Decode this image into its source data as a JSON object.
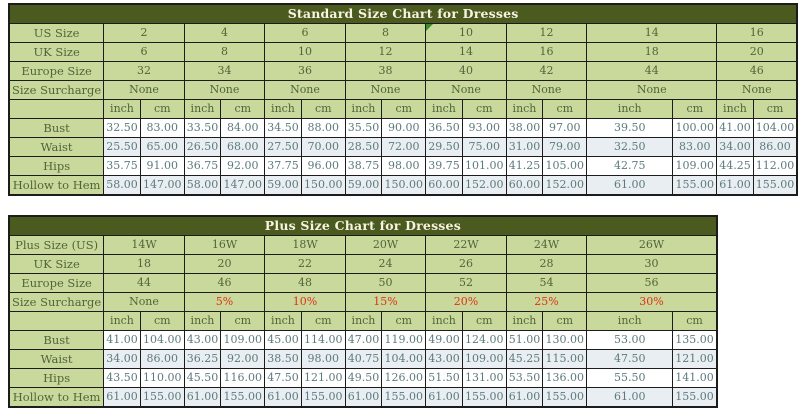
{
  "window": {
    "background": "#ffffff"
  },
  "colors": {
    "title_bar_bg": "#4b5a1f",
    "title_bar_text": "#f7f3e0",
    "header_cell_bg": "#c8d99b",
    "header_cell_text": "#52643a",
    "value_text": "#5e7a7e",
    "row_alt_bg": "#e8eef1",
    "surcharge_highlight": "#e0301e",
    "grid_border": "#1c1c1c",
    "corner_marker_green": "#3a8f2a"
  },
  "chart_data": [
    {
      "type": "table",
      "title": "Standard Size Chart for Dresses",
      "unit_labels": [
        "inch",
        "cm"
      ],
      "size_rows": [
        {
          "label": "US Size",
          "values": [
            "2",
            "4",
            "6",
            "8",
            "10",
            "12",
            "14",
            "16"
          ]
        },
        {
          "label": "UK Size",
          "values": [
            "6",
            "8",
            "10",
            "12",
            "14",
            "16",
            "18",
            "20"
          ]
        },
        {
          "label": "Europe Size",
          "values": [
            "32",
            "34",
            "36",
            "38",
            "40",
            "42",
            "44",
            "46"
          ]
        },
        {
          "label": "Size Surcharge",
          "values": [
            "None",
            "None",
            "None",
            "None",
            "None",
            "None",
            "None",
            "None"
          ]
        }
      ],
      "measure_rows": [
        {
          "label": "Bust",
          "inch": [
            "32.50",
            "33.50",
            "34.50",
            "35.50",
            "36.50",
            "38.00",
            "39.50",
            "41.00"
          ],
          "cm": [
            "83.00",
            "84.00",
            "88.00",
            "90.00",
            "93.00",
            "97.00",
            "100.00",
            "104.00"
          ]
        },
        {
          "label": "Waist",
          "inch": [
            "25.50",
            "26.50",
            "27.50",
            "28.50",
            "29.50",
            "31.00",
            "32.50",
            "34.00"
          ],
          "cm": [
            "65.00",
            "68.00",
            "70.00",
            "72.00",
            "75.00",
            "79.00",
            "83.00",
            "86.00"
          ]
        },
        {
          "label": "Hips",
          "inch": [
            "35.75",
            "36.75",
            "37.75",
            "38.75",
            "39.75",
            "41.25",
            "42.75",
            "44.25"
          ],
          "cm": [
            "91.00",
            "92.00",
            "96.00",
            "98.00",
            "101.00",
            "105.00",
            "109.00",
            "112.00"
          ]
        },
        {
          "label": "Hollow to Hem",
          "inch": [
            "58.00",
            "58.00",
            "59.00",
            "59.00",
            "60.00",
            "60.00",
            "61.00",
            "61.00"
          ],
          "cm": [
            "147.00",
            "147.00",
            "150.00",
            "150.00",
            "152.00",
            "152.00",
            "155.00",
            "155.00"
          ]
        }
      ],
      "corner_marker": {
        "row_label": "US Size",
        "size_index": 4
      }
    },
    {
      "type": "table",
      "title": "Plus Size Chart for Dresses",
      "unit_labels": [
        "inch",
        "cm"
      ],
      "size_rows": [
        {
          "label": "Plus Size (US)",
          "values": [
            "14W",
            "16W",
            "18W",
            "20W",
            "22W",
            "24W",
            "26W"
          ]
        },
        {
          "label": "UK Size",
          "values": [
            "18",
            "20",
            "22",
            "24",
            "26",
            "28",
            "30"
          ]
        },
        {
          "label": "Europe Size",
          "values": [
            "44",
            "46",
            "48",
            "50",
            "52",
            "54",
            "56"
          ]
        },
        {
          "label": "Size Surcharge",
          "values": [
            "None",
            "5%",
            "10%",
            "15%",
            "20%",
            "25%",
            "30%"
          ],
          "red_from": 1
        }
      ],
      "measure_rows": [
        {
          "label": "Bust",
          "inch": [
            "41.00",
            "43.00",
            "45.00",
            "47.00",
            "49.00",
            "51.00",
            "53.00"
          ],
          "cm": [
            "104.00",
            "109.00",
            "114.00",
            "119.00",
            "124.00",
            "130.00",
            "135.00"
          ]
        },
        {
          "label": "Waist",
          "inch": [
            "34.00",
            "36.25",
            "38.50",
            "40.75",
            "43.00",
            "45.25",
            "47.50"
          ],
          "cm": [
            "86.00",
            "92.00",
            "98.00",
            "104.00",
            "109.00",
            "115.00",
            "121.00"
          ]
        },
        {
          "label": "Hips",
          "inch": [
            "43.50",
            "45.50",
            "47.50",
            "49.50",
            "51.50",
            "53.50",
            "55.50"
          ],
          "cm": [
            "110.00",
            "116.00",
            "121.00",
            "126.00",
            "131.00",
            "136.00",
            "141.00"
          ]
        },
        {
          "label": "Hollow to Hem",
          "inch": [
            "61.00",
            "61.00",
            "61.00",
            "61.00",
            "61.00",
            "61.00",
            "61.00"
          ],
          "cm": [
            "155.00",
            "155.00",
            "155.00",
            "155.00",
            "155.00",
            "155.00",
            "155.00"
          ]
        }
      ]
    }
  ]
}
